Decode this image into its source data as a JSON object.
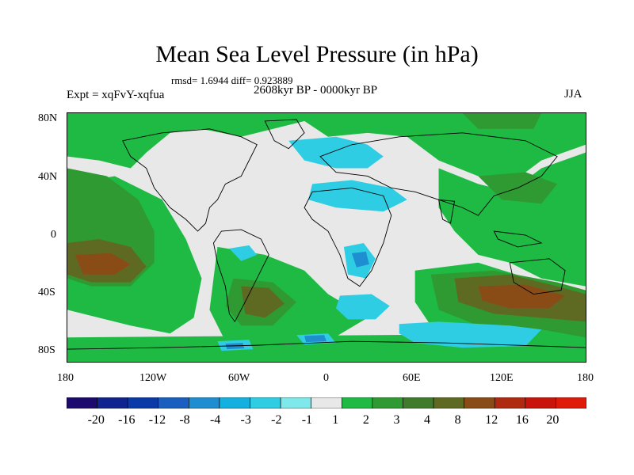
{
  "title": "Mean Sea Level Pressure (in hPa)",
  "rmsd_text": "rmsd= 1.6944 diff= 0.923889",
  "expt_text": "Expt = xqFvY-xqfua",
  "period_text": "2608kyr BP - 0000kyr BP",
  "season": "JJA",
  "lat_labels": [
    "80N",
    "40N",
    "0",
    "40S",
    "80S"
  ],
  "lon_labels": [
    "180",
    "120W",
    "60W",
    "0",
    "60E",
    "120E",
    "180"
  ],
  "legend": {
    "labels": [
      "-20",
      "-16",
      "-12",
      "-8",
      "-4",
      "-3",
      "-2",
      "-1",
      "1",
      "2",
      "3",
      "4",
      "8",
      "12",
      "16",
      "20"
    ],
    "colors": [
      "#1c0a6e",
      "#102490",
      "#0a3aa8",
      "#1a5fc0",
      "#1e8ed0",
      "#14b0e0",
      "#2fcde4",
      "#7fe8ea",
      "#e8e8e8",
      "#1fba44",
      "#2f9a32",
      "#3f7b2a",
      "#5e6a22",
      "#8a4c16",
      "#b02a10",
      "#c8140a",
      "#e01a0a"
    ]
  }
}
